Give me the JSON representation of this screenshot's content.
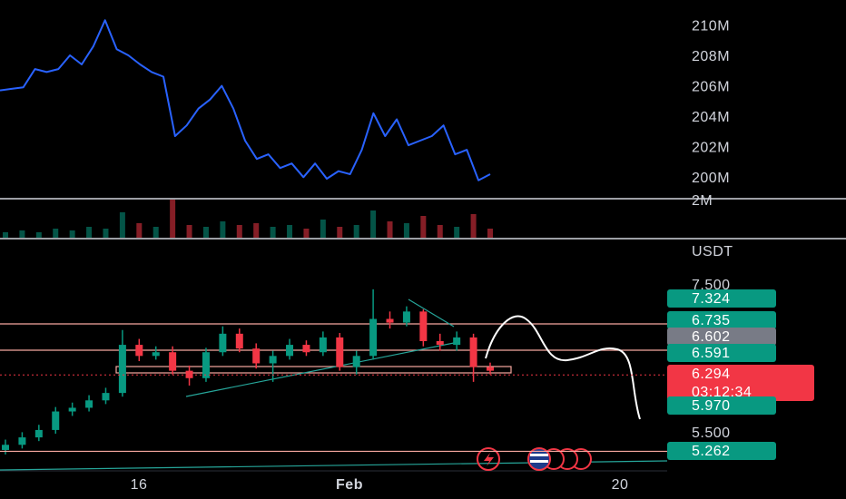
{
  "chart_data": [
    {
      "type": "line",
      "color": "#2962ff",
      "values": [
        205.8,
        205.9,
        206.0,
        207.2,
        207.0,
        207.2,
        208.1,
        207.5,
        208.7,
        210.4,
        208.5,
        208.1,
        207.5,
        207.0,
        206.7,
        202.8,
        203.5,
        204.6,
        205.2,
        206.1,
        204.6,
        202.5,
        201.3,
        201.6,
        200.7,
        201.0,
        200.1,
        201.0,
        200.0,
        200.5,
        200.3,
        201.9,
        204.3,
        202.8,
        203.9,
        202.2,
        202.5,
        202.8,
        203.5,
        201.6,
        201.9,
        199.9,
        200.3
      ],
      "ylim": [
        198.75,
        211.73
      ],
      "yticks": [
        {
          "value": 200,
          "label": "200M"
        },
        {
          "value": 202,
          "label": "202M"
        },
        {
          "value": 204,
          "label": "204M"
        },
        {
          "value": 206,
          "label": "206M"
        },
        {
          "value": 208,
          "label": "208M"
        },
        {
          "value": 210,
          "label": "210M"
        }
      ]
    },
    {
      "type": "volume",
      "values": [
        0.3,
        0.4,
        0.3,
        0.5,
        0.4,
        0.6,
        0.5,
        1.4,
        0.8,
        0.6,
        2.1,
        0.7,
        0.6,
        0.9,
        0.7,
        0.8,
        0.6,
        0.7,
        0.5,
        1.0,
        0.6,
        0.7,
        1.5,
        0.9,
        0.8,
        1.2,
        0.7,
        0.6,
        1.3,
        0.5
      ],
      "ylim": [
        0,
        2
      ],
      "yticks": [
        {
          "value": 2,
          "label": "2M"
        }
      ]
    },
    {
      "type": "candlestick",
      "unit": "USDT",
      "up_color": "#089981",
      "down_color": "#f23645",
      "open": [
        5.28,
        5.35,
        5.45,
        5.55,
        5.8,
        5.85,
        5.95,
        6.05,
        6.7,
        6.55,
        6.6,
        6.35,
        6.25,
        6.6,
        6.85,
        6.65,
        6.45,
        6.55,
        6.7,
        6.6,
        6.8,
        6.4,
        6.55,
        7.05,
        7.0,
        7.15,
        6.75,
        6.7,
        6.8,
        6.4
      ],
      "high": [
        5.42,
        5.52,
        5.62,
        5.86,
        5.92,
        6.02,
        6.12,
        6.9,
        6.78,
        6.68,
        6.68,
        6.42,
        6.66,
        6.95,
        6.92,
        6.72,
        6.62,
        6.78,
        6.76,
        6.88,
        6.86,
        6.62,
        7.45,
        7.15,
        7.22,
        7.18,
        6.85,
        6.88,
        6.85,
        6.46
      ],
      "low": [
        5.22,
        5.3,
        5.4,
        5.5,
        5.74,
        5.8,
        5.9,
        6.0,
        6.48,
        6.5,
        6.3,
        6.15,
        6.2,
        6.55,
        6.6,
        6.38,
        6.2,
        6.5,
        6.55,
        6.55,
        6.35,
        6.3,
        6.5,
        6.92,
        6.95,
        6.68,
        6.62,
        6.62,
        6.2,
        6.3
      ],
      "close": [
        5.35,
        5.45,
        5.55,
        5.8,
        5.85,
        5.95,
        6.05,
        6.7,
        6.55,
        6.6,
        6.35,
        6.25,
        6.6,
        6.85,
        6.65,
        6.45,
        6.55,
        6.7,
        6.6,
        6.8,
        6.4,
        6.55,
        7.05,
        7.0,
        7.15,
        6.75,
        6.7,
        6.8,
        6.4,
        6.35
      ],
      "ylim": [
        5.01,
        8.11
      ],
      "yticks": [
        {
          "value": 7.5,
          "label": "7.500"
        },
        {
          "value": 5.5,
          "label": "5.500"
        }
      ],
      "price_labels": [
        {
          "value": 7.324,
          "color": "#089981"
        },
        {
          "value": 6.735,
          "color": "#089981"
        },
        {
          "value": 6.602,
          "color": "#787b86"
        },
        {
          "value": 6.591,
          "color": "#089981"
        },
        {
          "value": 6.294,
          "color": "#f23645",
          "countdown": "03:12:34"
        },
        {
          "value": 5.97,
          "label": "5.970",
          "color": "#089981"
        },
        {
          "value": 5.262,
          "color": "#089981"
        }
      ],
      "xtick_labels": [
        "16",
        "Feb",
        "20"
      ]
    }
  ]
}
